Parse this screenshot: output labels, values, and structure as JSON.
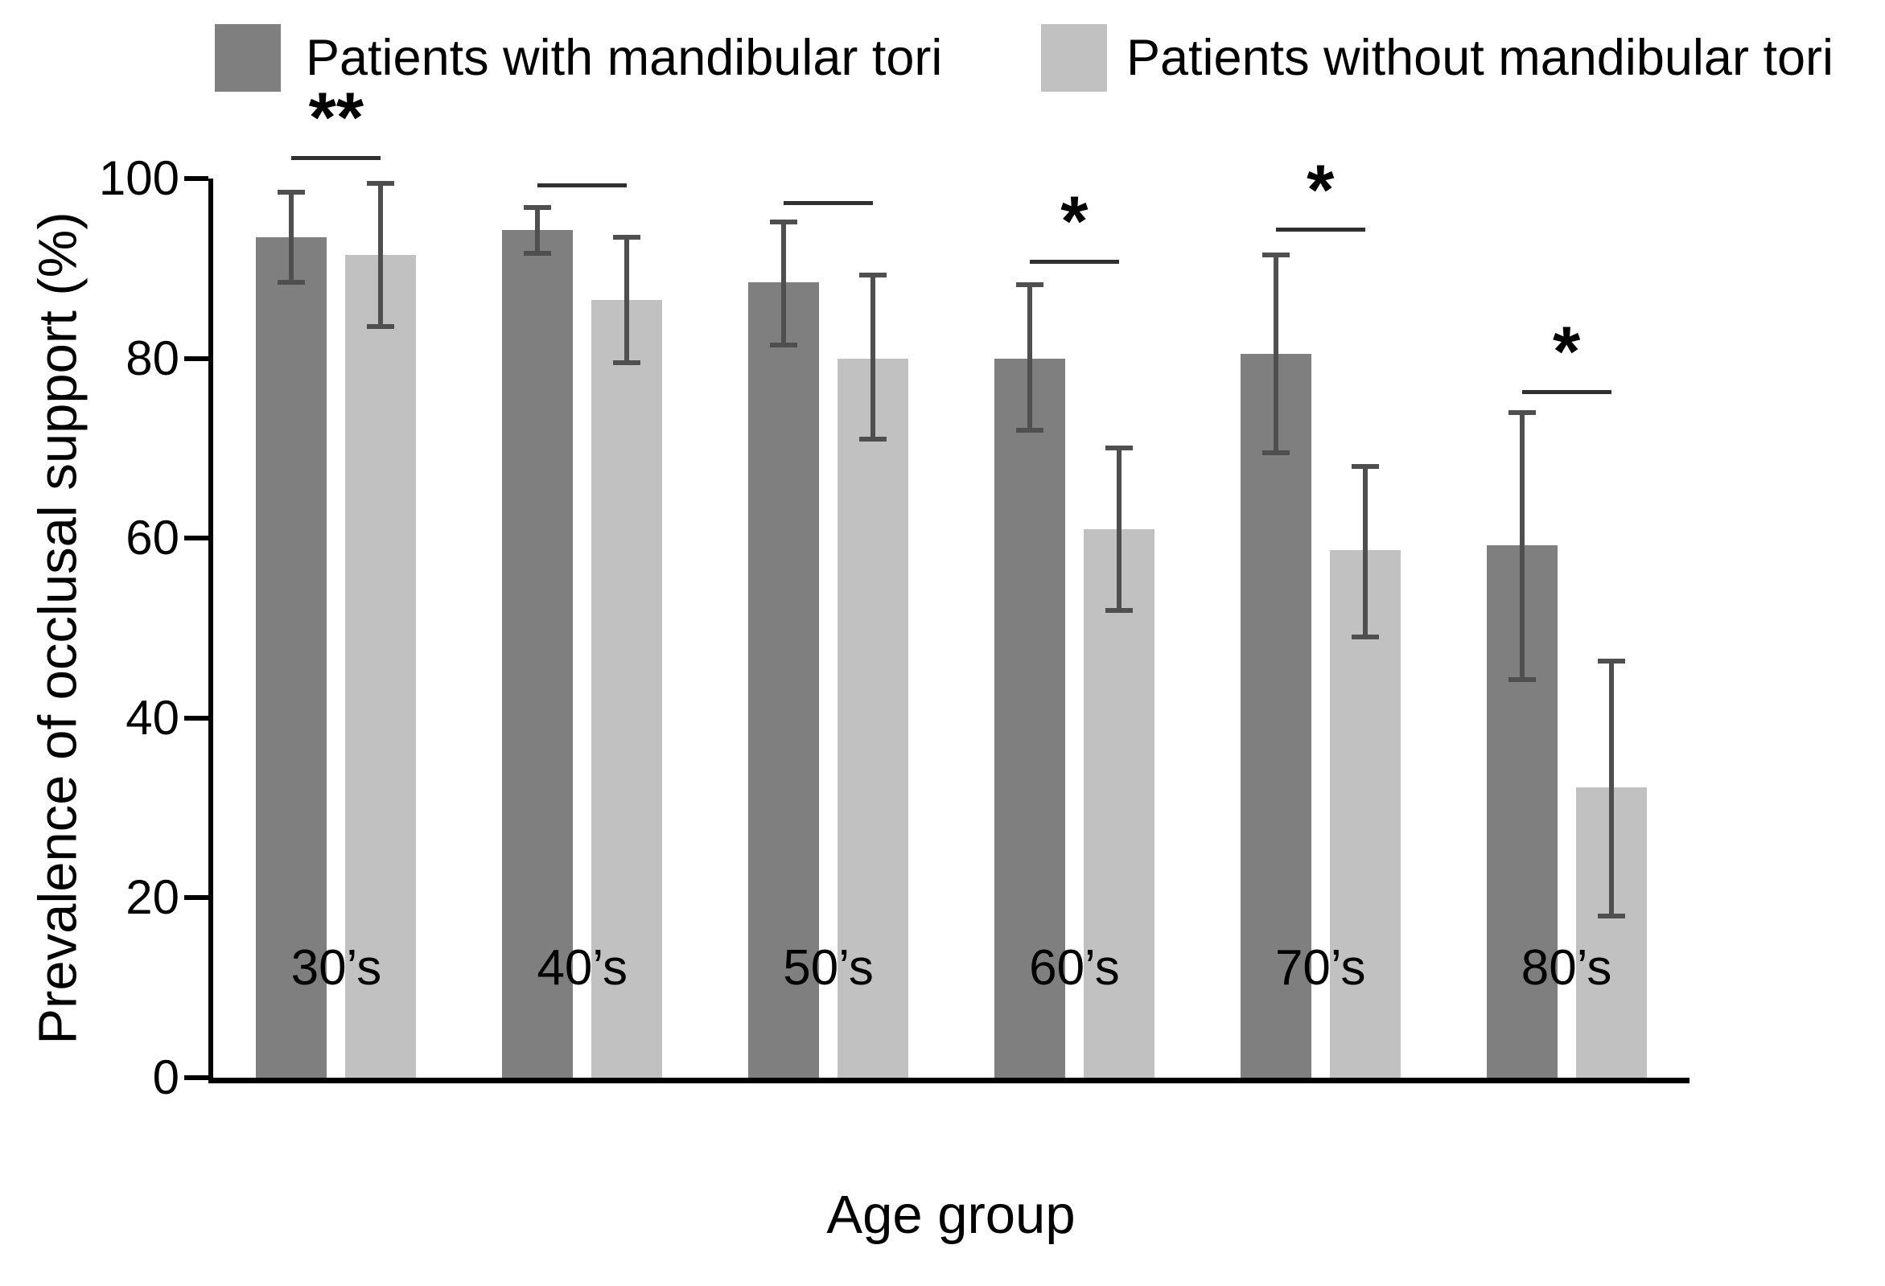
{
  "chart_data": {
    "type": "bar",
    "title": "",
    "xlabel": "Age group",
    "ylabel": "Prevalence of occlusal support (%)",
    "categories": [
      "30’s",
      "40’s",
      "50’s",
      "60’s",
      "70’s",
      "80’s"
    ],
    "y_ticks": [
      0,
      20,
      40,
      60,
      80,
      100
    ],
    "ylim": [
      0,
      100
    ],
    "grid": false,
    "legend_position": "top",
    "series": [
      {
        "name": "Patients with mandibular tori",
        "color": "#7f7f7f",
        "values": [
          93.5,
          94.3,
          88.5,
          80.0,
          80.5,
          59.2
        ],
        "err_low": [
          88.5,
          91.7,
          81.5,
          72.0,
          69.5,
          44.3
        ],
        "err_high": [
          98.5,
          96.8,
          95.2,
          88.2,
          91.5,
          74.0
        ]
      },
      {
        "name": "Patients without mandibular tori",
        "color": "#c1c1c1",
        "values": [
          91.5,
          86.5,
          80.0,
          61.0,
          58.7,
          32.3
        ],
        "err_low": [
          83.5,
          79.5,
          71.0,
          52.0,
          49.0,
          18.0
        ],
        "err_high": [
          99.5,
          93.5,
          89.3,
          70.0,
          68.0,
          46.3
        ]
      }
    ],
    "significance": [
      {
        "label": "**",
        "height": 102.5
      },
      {
        "label": "",
        "height": 99.5
      },
      {
        "label": "",
        "height": 97.5
      },
      {
        "label": "*",
        "height": 91.0
      },
      {
        "label": "*",
        "height": 94.5
      },
      {
        "label": "*",
        "height": 76.5
      }
    ],
    "error_color": "#4f4f4f",
    "sig_color": "#303030",
    "axis_color": "#000000"
  }
}
